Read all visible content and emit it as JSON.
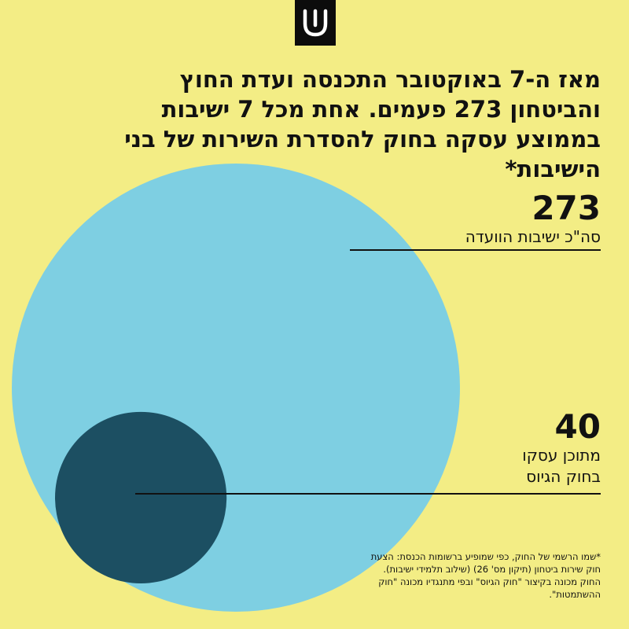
{
  "colors": {
    "background": "#f3ed85",
    "total_circle": "#7ecfe2",
    "subset_circle": "#1c4f62",
    "text": "#111111",
    "logo_bg": "#0c0c0c",
    "logo_fg": "#ffffff"
  },
  "logo": {
    "icon": "shin-letter-icon"
  },
  "title": "מאז ה-7 באוקטובר התכנסה ועדת החוץ והביטחון 273 פעמים. אחת מכל 7 ישיבות בממוצע עסקה בחוק להסדרת השירות של בני הישיבות*",
  "chart_data": {
    "type": "bubble",
    "title": "מאז ה-7 באוקטובר התכנסה ועדת החוץ והביטחון 273 פעמים. אחת מכל 7 ישיבות בממוצע עסקה בחוק להסדרת השירות של בני הישיבות*",
    "series": [
      {
        "value": 273,
        "label": "סה\"כ ישיבות הוועדה",
        "value_label": "273"
      },
      {
        "value": 40,
        "label_lines": [
          "מתוכן עסקו",
          "בחוק הגיוס"
        ],
        "value_label": "40"
      }
    ]
  },
  "footnote": "*שמו הרשמי של החוק, כפי שמופיע ברשומות הכנסת: הצעת חוק שירות ביטחון (תיקון מס' 26) (שילוב תלמידי ישיבות). החוק מכונה בקיצור \"חוק הגיוס\" ובפי מתנגדיו מכונה \"חוק ההשתמטות\"."
}
